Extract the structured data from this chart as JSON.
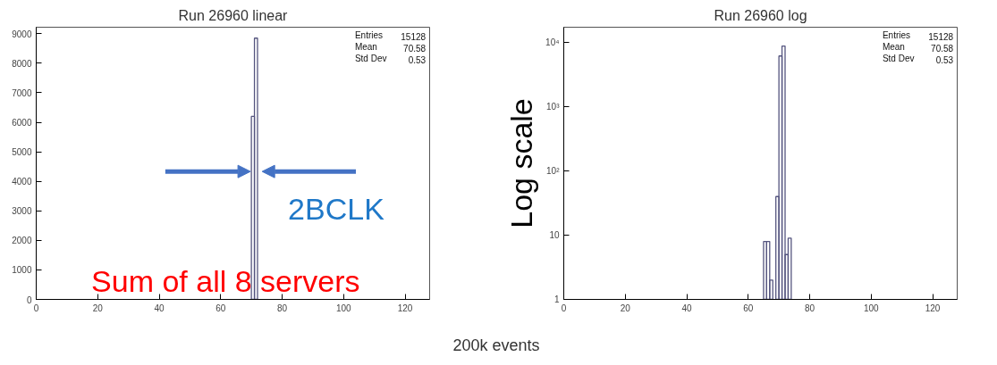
{
  "chart_data": [
    {
      "type": "histogram",
      "title": "Run 26960 linear",
      "bins": [
        65,
        66,
        67,
        68,
        69,
        70,
        71,
        72,
        73,
        74
      ],
      "values": [
        null,
        null,
        null,
        null,
        null,
        6200,
        8850,
        null,
        null
      ],
      "color": "#55557f",
      "xlim": [
        0,
        128
      ],
      "xticks": [
        0,
        20,
        40,
        60,
        80,
        100,
        120
      ],
      "ylim": [
        0,
        9220
      ],
      "yticks": [
        0,
        1000,
        2000,
        3000,
        4000,
        5000,
        6000,
        7000,
        8000,
        9000
      ],
      "annotations": [
        "Entries",
        "15128",
        "Mean",
        "70.58",
        "Std Dev",
        "0.53",
        "2BCLK",
        "Sum of all 8 servers"
      ]
    },
    {
      "type": "histogram",
      "title": "Run 26960 log",
      "ylabel": "Log scale",
      "log": true,
      "bins": [
        65,
        66,
        67,
        68,
        69,
        70,
        71,
        72,
        73,
        74
      ],
      "values": [
        8,
        8,
        2,
        null,
        40,
        6200,
        8850,
        5,
        9
      ],
      "color": "#55557f",
      "xlim": [
        0,
        128
      ],
      "xticks": [
        0,
        20,
        40,
        60,
        80,
        100,
        120
      ],
      "ylim": [
        1,
        17400
      ],
      "yticks": [
        1,
        10,
        {
          "value": 100,
          "label": "10²"
        },
        {
          "value": 1000,
          "label": "10³"
        },
        {
          "value": 10000,
          "label": "10⁴"
        }
      ],
      "annotations": [
        "Entries",
        "15128",
        "Mean",
        "70.58",
        "Std Dev",
        "0.53",
        "200k events"
      ]
    }
  ]
}
